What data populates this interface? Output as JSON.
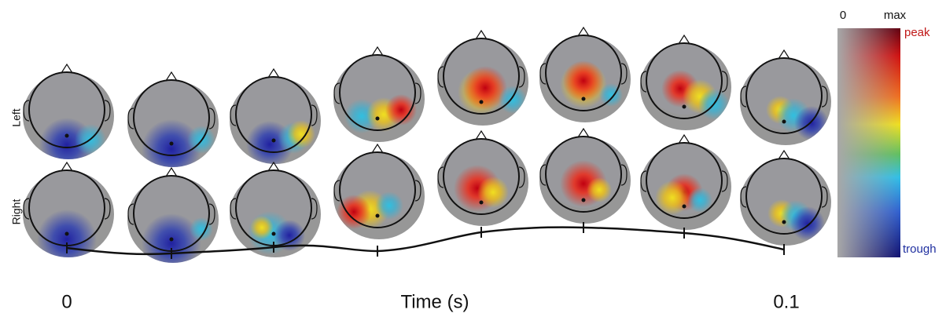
{
  "rows": [
    "Left",
    "Right"
  ],
  "time_axis": {
    "start": "0",
    "title": "Time (s)",
    "end": "0.1"
  },
  "colorbar": {
    "min": "0",
    "max": "max",
    "top": "peak",
    "bottom": "trough"
  }
}
